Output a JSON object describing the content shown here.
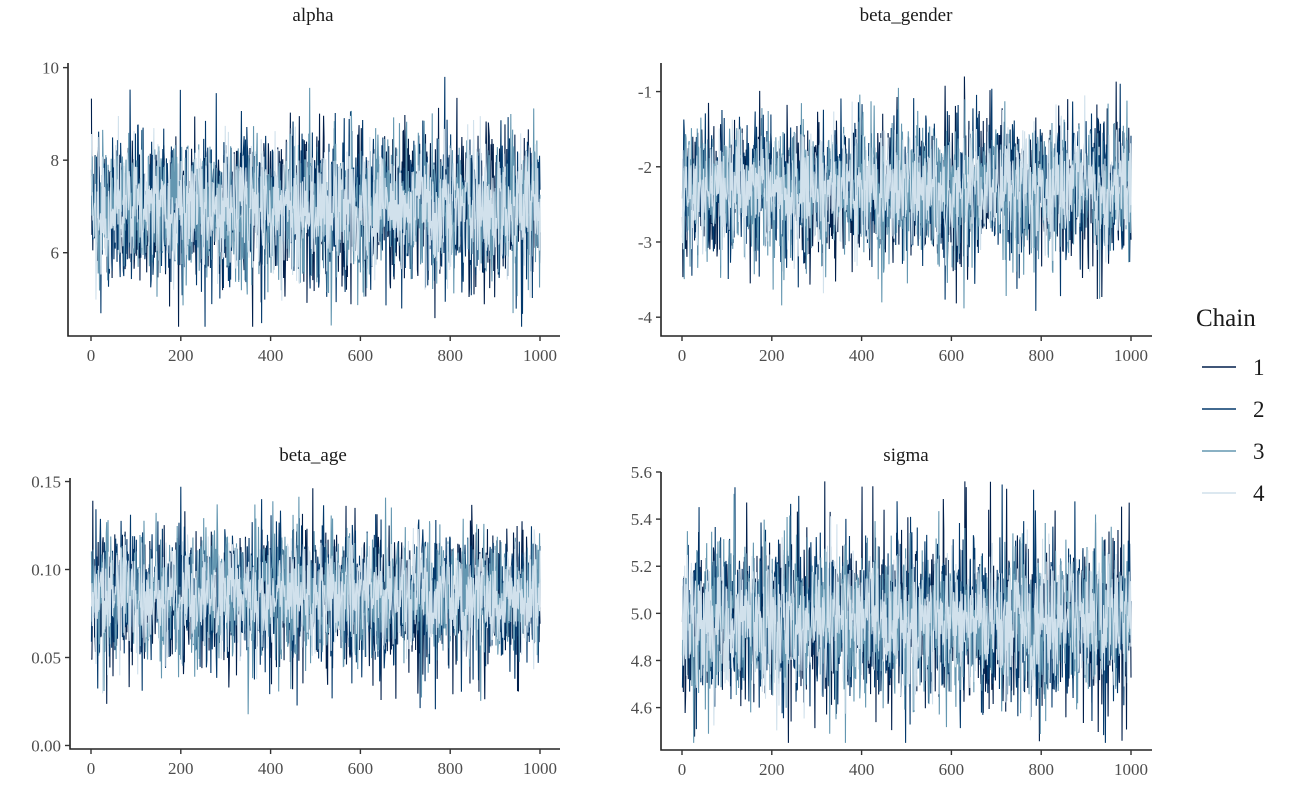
{
  "chart_data": {
    "type": "line",
    "title": "",
    "xlabel": "",
    "ylabel": "",
    "iterations": 1000,
    "legend": {
      "title": "Chain",
      "placement": "right",
      "entries": [
        "1",
        "2",
        "3",
        "4"
      ]
    },
    "chain_colors": [
      "#011f4b",
      "#03396c",
      "#6497b1",
      "#d1e1ec"
    ],
    "panels": [
      {
        "title": "alpha",
        "xlim": [
          0,
          1000
        ],
        "xticks": [
          "0",
          "200",
          "400",
          "600",
          "800",
          "1000"
        ],
        "ylim": [
          4.2,
          10.1
        ],
        "yticks": [
          "6",
          "8",
          "10"
        ],
        "ytick_values": [
          6,
          8,
          10
        ],
        "mean": 7.0,
        "sd": 0.8,
        "observed_min": 4.4,
        "observed_max": 9.8
      },
      {
        "title": "beta_gender",
        "xlim": [
          0,
          1000
        ],
        "xticks": [
          "0",
          "200",
          "400",
          "600",
          "800",
          "1000"
        ],
        "ylim": [
          -4.25,
          -0.62
        ],
        "yticks": [
          "-4",
          "-3",
          "-2",
          "-1"
        ],
        "ytick_values": [
          -4,
          -3,
          -2,
          -1
        ],
        "mean": -2.3,
        "sd": 0.45,
        "observed_min": -4.1,
        "observed_max": -0.8
      },
      {
        "title": "beta_age",
        "xlim": [
          0,
          1000
        ],
        "xticks": [
          "0",
          "200",
          "400",
          "600",
          "800",
          "1000"
        ],
        "ylim": [
          -0.002,
          0.152
        ],
        "yticks": [
          "0.00",
          "0.05",
          "0.10",
          "0.15"
        ],
        "ytick_values": [
          0,
          0.05,
          0.1,
          0.15
        ],
        "mean": 0.085,
        "sd": 0.019,
        "observed_min": 0.003,
        "observed_max": 0.147
      },
      {
        "title": "sigma",
        "xlim": [
          0,
          1000
        ],
        "xticks": [
          "0",
          "200",
          "400",
          "600",
          "800",
          "1000"
        ],
        "ylim": [
          4.42,
          5.6
        ],
        "yticks": [
          "4.6",
          "4.8",
          "5.0",
          "5.2",
          "5.4",
          "5.6"
        ],
        "ytick_values": [
          4.6,
          4.8,
          5.0,
          5.2,
          5.4,
          5.6
        ],
        "mean": 4.97,
        "sd": 0.17,
        "observed_min": 4.45,
        "observed_max": 5.56
      }
    ]
  }
}
